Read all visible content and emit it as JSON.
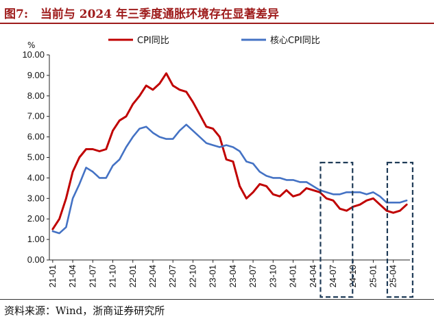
{
  "figure_title": "图7:   当前与 2024 年三季度通胀环境存在显著差异",
  "source": "资料来源：Wind，浙商证券研究所",
  "colors": {
    "cpi": "#c00000",
    "core": "#4472c4",
    "highlight_box": "#1f3b57",
    "title": "#9e1b1b"
  },
  "chart_data": {
    "type": "line",
    "title": "",
    "ylabel": "%",
    "xlabel": "",
    "ylim": [
      0,
      10
    ],
    "yticks": [
      "0.00",
      "1.00",
      "2.00",
      "3.00",
      "4.00",
      "5.00",
      "6.00",
      "7.00",
      "8.00",
      "9.00",
      "10.00"
    ],
    "x_tick_labels": [
      "21-01",
      "21-04",
      "21-07",
      "21-10",
      "22-01",
      "22-04",
      "22-07",
      "22-10",
      "23-01",
      "23-04",
      "23-07",
      "23-10",
      "24-01",
      "24-04",
      "24-07",
      "24-10",
      "25-01",
      "25-04"
    ],
    "x": [
      "21-01",
      "21-02",
      "21-03",
      "21-04",
      "21-05",
      "21-06",
      "21-07",
      "21-08",
      "21-09",
      "21-10",
      "21-11",
      "21-12",
      "22-01",
      "22-02",
      "22-03",
      "22-04",
      "22-05",
      "22-06",
      "22-07",
      "22-08",
      "22-09",
      "22-10",
      "22-11",
      "22-12",
      "23-01",
      "23-02",
      "23-03",
      "23-04",
      "23-05",
      "23-06",
      "23-07",
      "23-08",
      "23-09",
      "23-10",
      "23-11",
      "23-12",
      "24-01",
      "24-02",
      "24-03",
      "24-04",
      "24-05",
      "24-06",
      "24-07",
      "24-08",
      "24-09",
      "24-10",
      "24-11",
      "24-12",
      "25-01",
      "25-02",
      "25-03",
      "25-04",
      "25-05",
      "25-06"
    ],
    "legend_position": "top",
    "series": [
      {
        "name": "CPI同比",
        "color": "#c00000",
        "values": [
          1.5,
          2.0,
          3.0,
          4.3,
          5.0,
          5.4,
          5.4,
          5.3,
          5.4,
          6.3,
          6.8,
          7.0,
          7.6,
          8.0,
          8.5,
          8.3,
          8.6,
          9.1,
          8.5,
          8.3,
          8.2,
          7.7,
          7.1,
          6.5,
          6.4,
          6.0,
          4.9,
          4.8,
          3.6,
          3.0,
          3.3,
          3.7,
          3.6,
          3.2,
          3.1,
          3.4,
          3.1,
          3.2,
          3.5,
          3.4,
          3.3,
          3.0,
          2.9,
          2.5,
          2.4,
          2.6,
          2.7,
          2.9,
          3.0,
          2.7,
          2.4,
          2.3,
          2.4,
          2.7
        ]
      },
      {
        "name": "核心CPI同比",
        "color": "#4472c4",
        "values": [
          1.4,
          1.3,
          1.6,
          3.0,
          3.7,
          4.5,
          4.3,
          4.0,
          4.0,
          4.6,
          4.9,
          5.5,
          6.0,
          6.4,
          6.5,
          6.2,
          6.0,
          5.9,
          5.9,
          6.3,
          6.6,
          6.3,
          6.0,
          5.7,
          5.6,
          5.5,
          5.6,
          5.5,
          5.3,
          4.8,
          4.7,
          4.3,
          4.1,
          4.0,
          4.0,
          3.9,
          3.9,
          3.8,
          3.8,
          3.6,
          3.4,
          3.3,
          3.2,
          3.2,
          3.3,
          3.3,
          3.3,
          3.2,
          3.3,
          3.1,
          2.8,
          2.8,
          2.8,
          2.9
        ]
      }
    ],
    "highlights": [
      {
        "from": "24-06",
        "to": "24-09"
      },
      {
        "from": "25-04",
        "to": "25-06"
      }
    ]
  }
}
